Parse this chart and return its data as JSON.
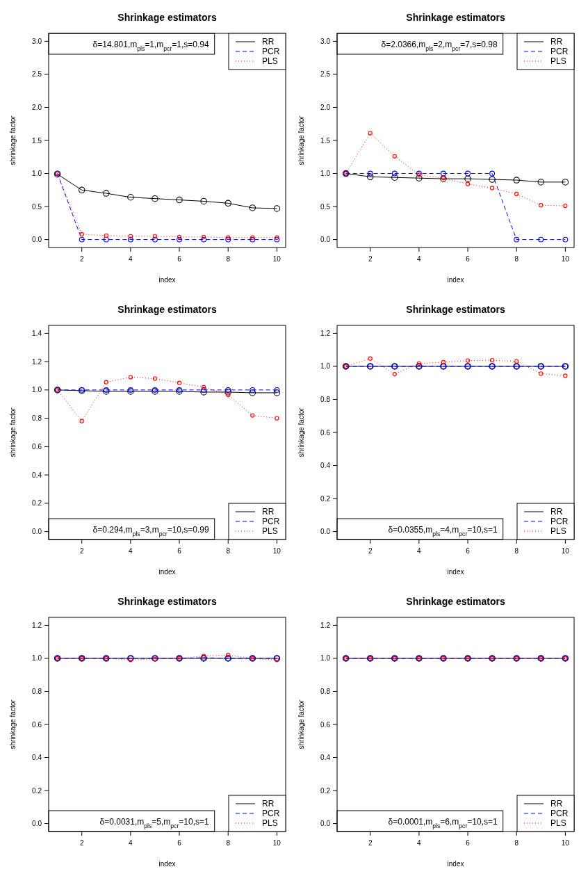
{
  "chart_data": [
    {
      "type": "line",
      "title": "Shrinkage estimators",
      "xlabel": "index",
      "ylabel": "shrinkage factor",
      "x": [
        1,
        2,
        3,
        4,
        5,
        6,
        7,
        8,
        9,
        10
      ],
      "xlim": [
        0.64,
        10.36
      ],
      "xticks": [
        2,
        4,
        6,
        8,
        10
      ],
      "ylim": [
        -0.12,
        3.12
      ],
      "yticks": [
        {
          "value": 0,
          "label": "0.0"
        },
        {
          "value": 0.5,
          "label": "0.5"
        },
        {
          "value": 1,
          "label": "1.0"
        },
        {
          "value": 1.5,
          "label": "1.5"
        },
        {
          "value": 2,
          "label": "2.0"
        },
        {
          "value": 2.5,
          "label": "2.5"
        },
        {
          "value": 3,
          "label": "3.0"
        }
      ],
      "marker": "circle",
      "legend": "top right",
      "annotations": [
        "δ=14.801,m$_{pls}$=1,m$_{pcr}$=1,s=0.94"
      ],
      "series": [
        {
          "name": "RR",
          "color": "#000000",
          "line_style": "solid",
          "values": [
            0.99,
            0.75,
            0.7,
            0.64,
            0.62,
            0.6,
            0.58,
            0.55,
            0.48,
            0.47
          ]
        },
        {
          "name": "PCR",
          "color": "#0000ff",
          "line_style": "dashed",
          "values": [
            1,
            0,
            0,
            0,
            0,
            0,
            0,
            0,
            0,
            0
          ]
        },
        {
          "name": "PLS",
          "color": "#ff0000",
          "line_style": "dotted",
          "values": [
            1,
            0.08,
            0.06,
            0.05,
            0.05,
            0.04,
            0.04,
            0.03,
            0.03,
            0.03
          ]
        }
      ]
    },
    {
      "type": "line",
      "title": "Shrinkage estimators",
      "xlabel": "index",
      "ylabel": "shrinkage factor",
      "x": [
        1,
        2,
        3,
        4,
        5,
        6,
        7,
        8,
        9,
        10
      ],
      "xlim": [
        0.64,
        10.36
      ],
      "xticks": [
        2,
        4,
        6,
        8,
        10
      ],
      "ylim": [
        -0.12,
        3.12
      ],
      "yticks": [
        {
          "value": 0,
          "label": "0.0"
        },
        {
          "value": 0.5,
          "label": "0.5"
        },
        {
          "value": 1,
          "label": "1.0"
        },
        {
          "value": 1.5,
          "label": "1.5"
        },
        {
          "value": 2,
          "label": "2.0"
        },
        {
          "value": 2.5,
          "label": "2.5"
        },
        {
          "value": 3,
          "label": "3.0"
        }
      ],
      "marker": "circle",
      "legend": "top right",
      "annotations": [
        "δ=2.0366,m$_{pls}$=2,m$_{pcr}$=7,s=0.98"
      ],
      "series": [
        {
          "name": "RR",
          "color": "#000000",
          "line_style": "solid",
          "values": [
            1,
            0.95,
            0.94,
            0.93,
            0.92,
            0.92,
            0.91,
            0.9,
            0.87,
            0.87
          ]
        },
        {
          "name": "PCR",
          "color": "#0000ff",
          "line_style": "dashed",
          "values": [
            1,
            1,
            1,
            1,
            1,
            1,
            1,
            0,
            0,
            0
          ]
        },
        {
          "name": "PLS",
          "color": "#ff0000",
          "line_style": "dotted",
          "values": [
            1,
            1.61,
            1.26,
            0.98,
            0.93,
            0.84,
            0.78,
            0.69,
            0.52,
            0.51
          ]
        }
      ]
    },
    {
      "type": "line",
      "title": "Shrinkage estimators",
      "xlabel": "index",
      "ylabel": "shrinkage factor",
      "x": [
        1,
        2,
        3,
        4,
        5,
        6,
        7,
        8,
        9,
        10
      ],
      "xlim": [
        0.64,
        10.36
      ],
      "xticks": [
        2,
        4,
        6,
        8,
        10
      ],
      "ylim": [
        -0.056,
        1.456
      ],
      "yticks": [
        {
          "value": 0,
          "label": "0.0"
        },
        {
          "value": 0.2,
          "label": "0.2"
        },
        {
          "value": 0.4,
          "label": "0.4"
        },
        {
          "value": 0.6,
          "label": "0.6"
        },
        {
          "value": 0.8,
          "label": "0.8"
        },
        {
          "value": 1,
          "label": "1.0"
        },
        {
          "value": 1.2,
          "label": "1.2"
        },
        {
          "value": 1.4,
          "label": "1.4"
        }
      ],
      "marker": "circle",
      "legend": "bottom right",
      "annotations": [
        "δ=0.294,m$_{pls}$=3,m$_{pcr}$=10,s=0.99"
      ],
      "series": [
        {
          "name": "RR",
          "color": "#000000",
          "line_style": "solid",
          "values": [
            1,
            0.995,
            0.99,
            0.99,
            0.99,
            0.99,
            0.985,
            0.985,
            0.98,
            0.98
          ]
        },
        {
          "name": "PCR",
          "color": "#0000ff",
          "line_style": "dashed",
          "values": [
            1,
            1,
            1,
            1,
            1,
            1,
            1,
            1,
            1,
            1
          ]
        },
        {
          "name": "PLS",
          "color": "#ff0000",
          "line_style": "dotted",
          "values": [
            1,
            0.78,
            1.055,
            1.09,
            1.08,
            1.05,
            1.02,
            0.965,
            0.82,
            0.8
          ]
        }
      ]
    },
    {
      "type": "line",
      "title": "Shrinkage estimators",
      "xlabel": "index",
      "ylabel": "shrinkage factor",
      "x": [
        1,
        2,
        3,
        4,
        5,
        6,
        7,
        8,
        9,
        10
      ],
      "xlim": [
        0.64,
        10.36
      ],
      "xticks": [
        2,
        4,
        6,
        8,
        10
      ],
      "ylim": [
        -0.048,
        1.248
      ],
      "yticks": [
        {
          "value": 0,
          "label": "0.0"
        },
        {
          "value": 0.2,
          "label": "0.2"
        },
        {
          "value": 0.4,
          "label": "0.4"
        },
        {
          "value": 0.6,
          "label": "0.6"
        },
        {
          "value": 0.8,
          "label": "0.8"
        },
        {
          "value": 1,
          "label": "1.0"
        },
        {
          "value": 1.2,
          "label": "1.2"
        }
      ],
      "marker": "circle",
      "legend": "bottom right",
      "annotations": [
        "δ=0.0355,m$_{pls}$=4,m$_{pcr}$=10,s=1"
      ],
      "series": [
        {
          "name": "RR",
          "color": "#000000",
          "line_style": "solid",
          "values": [
            1,
            1,
            1,
            1,
            1,
            1,
            1,
            1,
            1,
            1
          ]
        },
        {
          "name": "PCR",
          "color": "#0000ff",
          "line_style": "dashed",
          "values": [
            1,
            1,
            1,
            1,
            1,
            1,
            1,
            1,
            1,
            1
          ]
        },
        {
          "name": "PLS",
          "color": "#ff0000",
          "line_style": "dotted",
          "values": [
            1,
            1.047,
            0.953,
            1.017,
            1.025,
            1.035,
            1.037,
            1.03,
            0.956,
            0.943
          ]
        }
      ]
    },
    {
      "type": "line",
      "title": "Shrinkage estimators",
      "xlabel": "index",
      "ylabel": "shrinkage factor",
      "x": [
        1,
        2,
        3,
        4,
        5,
        6,
        7,
        8,
        9,
        10
      ],
      "xlim": [
        0.64,
        10.36
      ],
      "xticks": [
        2,
        4,
        6,
        8,
        10
      ],
      "ylim": [
        -0.048,
        1.248
      ],
      "yticks": [
        {
          "value": 0,
          "label": "0.0"
        },
        {
          "value": 0.2,
          "label": "0.2"
        },
        {
          "value": 0.4,
          "label": "0.4"
        },
        {
          "value": 0.6,
          "label": "0.6"
        },
        {
          "value": 0.8,
          "label": "0.8"
        },
        {
          "value": 1,
          "label": "1.0"
        },
        {
          "value": 1.2,
          "label": "1.2"
        }
      ],
      "marker": "circle",
      "legend": "bottom right",
      "annotations": [
        "δ=0.0031,m$_{pls}$=5,m$_{pcr}$=10,s=1"
      ],
      "series": [
        {
          "name": "RR",
          "color": "#000000",
          "line_style": "solid",
          "values": [
            1,
            1,
            1,
            1,
            1,
            1,
            1,
            1,
            1,
            1
          ]
        },
        {
          "name": "PCR",
          "color": "#0000ff",
          "line_style": "dashed",
          "values": [
            1,
            1,
            1,
            1,
            1,
            1,
            1.004,
            1,
            1,
            1
          ]
        },
        {
          "name": "PLS",
          "color": "#ff0000",
          "line_style": "dotted",
          "values": [
            1,
            1,
            1,
            0.99,
            0.996,
            1,
            1.014,
            1.02,
            0.999,
            0.99
          ]
        }
      ]
    },
    {
      "type": "line",
      "title": "Shrinkage estimators",
      "xlabel": "index",
      "ylabel": "shrinkage factor",
      "x": [
        1,
        2,
        3,
        4,
        5,
        6,
        7,
        8,
        9,
        10
      ],
      "xlim": [
        0.64,
        10.36
      ],
      "xticks": [
        2,
        4,
        6,
        8,
        10
      ],
      "ylim": [
        -0.048,
        1.248
      ],
      "yticks": [
        {
          "value": 0,
          "label": "0.0"
        },
        {
          "value": 0.2,
          "label": "0.2"
        },
        {
          "value": 0.4,
          "label": "0.4"
        },
        {
          "value": 0.6,
          "label": "0.6"
        },
        {
          "value": 0.8,
          "label": "0.8"
        },
        {
          "value": 1,
          "label": "1.0"
        },
        {
          "value": 1.2,
          "label": "1.2"
        }
      ],
      "marker": "circle",
      "legend": "bottom right",
      "annotations": [
        "δ=0.0001,m$_{pls}$=6,m$_{pcr}$=10,s=1"
      ],
      "series": [
        {
          "name": "RR",
          "color": "#000000",
          "line_style": "solid",
          "values": [
            1,
            1,
            1,
            1,
            1,
            1,
            1,
            1,
            1,
            1
          ]
        },
        {
          "name": "PCR",
          "color": "#0000ff",
          "line_style": "dashed",
          "values": [
            1,
            1,
            1,
            1,
            1,
            1,
            1,
            1,
            1,
            1
          ]
        },
        {
          "name": "PLS",
          "color": "#ff0000",
          "line_style": "dotted",
          "values": [
            1,
            1,
            1,
            1,
            1,
            1,
            1,
            1,
            1,
            1
          ]
        }
      ]
    }
  ]
}
